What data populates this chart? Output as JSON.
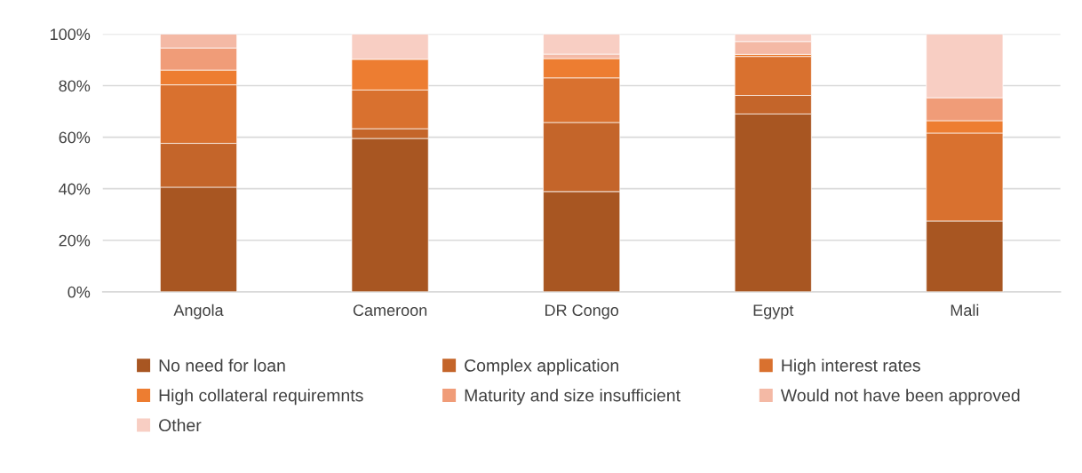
{
  "chart_data": {
    "type": "bar",
    "stacked": true,
    "categories": [
      "Angola",
      "Cameroon",
      "DR Congo",
      "Egypt",
      "Mali"
    ],
    "series": [
      {
        "name": "No need for loan",
        "color": "#a85622",
        "values": [
          40.6,
          59.5,
          38.9,
          69.0,
          27.5
        ]
      },
      {
        "name": "Complex application",
        "color": "#c4652a",
        "values": [
          17.0,
          3.8,
          26.8,
          7.2,
          0
        ]
      },
      {
        "name": "High interest rates",
        "color": "#d9712f",
        "values": [
          22.7,
          15.0,
          17.3,
          15.1,
          34.1
        ]
      },
      {
        "name": "High collateral requiremnts",
        "color": "#ed7d31",
        "values": [
          5.7,
          11.9,
          7.5,
          0.8,
          4.8
        ]
      },
      {
        "name": "Maturity and size insufficient",
        "color": "#f09c78",
        "values": [
          8.6,
          0,
          0,
          0,
          8.9
        ]
      },
      {
        "name": "Would not have been approved",
        "color": "#f4b9a5",
        "values": [
          5.4,
          0,
          1.7,
          5.0,
          0
        ]
      },
      {
        "name": "Other",
        "color": "#f8cec3",
        "values": [
          0,
          9.8,
          7.8,
          2.9,
          24.7
        ]
      }
    ],
    "ylim": [
      0,
      100
    ],
    "yticks": [
      {
        "value": 0,
        "label": "0%"
      },
      {
        "value": 20,
        "label": "20%"
      },
      {
        "value": 40,
        "label": "40%"
      },
      {
        "value": 60,
        "label": "60%"
      },
      {
        "value": 80,
        "label": "80%"
      },
      {
        "value": 100,
        "label": "100%"
      }
    ],
    "grid": "y",
    "legend": "bottom"
  }
}
